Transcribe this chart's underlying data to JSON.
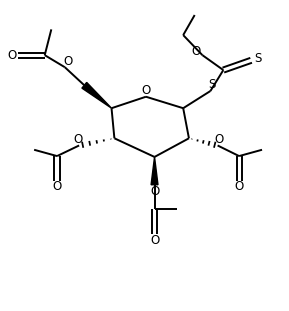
{
  "background": "#ffffff",
  "line_color": "#000000",
  "line_width": 1.4,
  "font_size": 8.5,
  "figsize": [
    2.89,
    3.11
  ],
  "dpi": 100,
  "xlim": [
    0,
    10
  ],
  "ylim": [
    0,
    10.8
  ]
}
